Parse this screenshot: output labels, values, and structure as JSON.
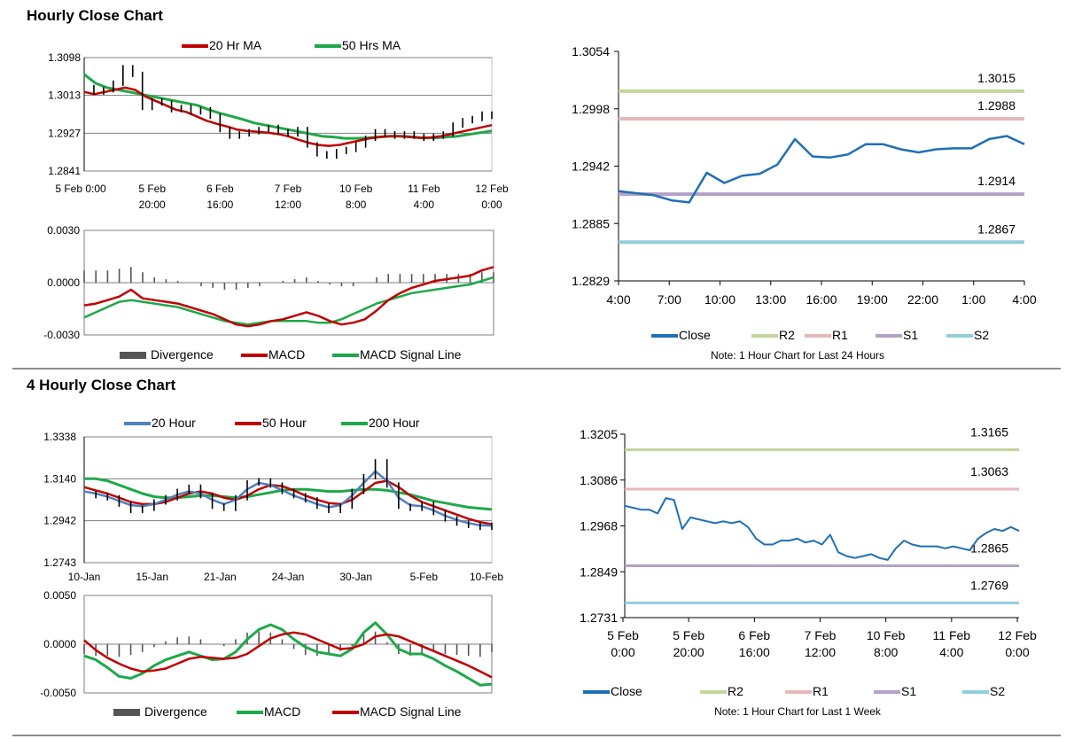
{
  "sections": {
    "hourly_title": "Hourly Close Chart",
    "four_hourly_title": "4 Hourly Close Chart"
  },
  "colors": {
    "red": "#c00000",
    "green": "#1ea84a",
    "blue": "#4f81bd",
    "close": "#1f6fb4",
    "r2": "#c3d69b",
    "r1": "#e6b9b8",
    "s1": "#b3a2c7",
    "s2": "#93cddd",
    "grid": "#7f7f7f",
    "bar": "#555555"
  },
  "chart_data": [
    {
      "id": "hourly_price",
      "type": "line",
      "title": "Hourly Close Chart",
      "legend": [
        "20 Hr MA",
        "50 Hrs MA"
      ],
      "y_ticks": [
        "1.3098",
        "1.3013",
        "1.2927",
        "1.2841"
      ],
      "ylim": [
        1.2841,
        1.3098
      ],
      "x_ticks": [
        [
          "5 Feb 0:00",
          ""
        ],
        [
          "5 Feb",
          "20:00"
        ],
        [
          "6 Feb",
          "16:00"
        ],
        [
          "7 Feb",
          "12:00"
        ],
        [
          "10 Feb",
          "8:00"
        ],
        [
          "11 Feb",
          "4:00"
        ],
        [
          "12 Feb",
          "0:00"
        ]
      ],
      "price": [
        1.303,
        1.302,
        1.3025,
        1.304,
        1.3075,
        1.306,
        1.2985,
        1.3,
        1.2995,
        1.298,
        1.2985,
        1.2975,
        1.298,
        1.2965,
        1.2935,
        1.292,
        1.2925,
        1.293,
        1.2935,
        1.294,
        1.293,
        1.2925,
        1.2935,
        1.29,
        1.288,
        1.2875,
        1.2885,
        1.289,
        1.29,
        1.2915,
        1.293,
        1.2925,
        1.292,
        1.2925,
        1.292,
        1.2915,
        1.292,
        1.2925,
        1.2945,
        1.2955,
        1.296,
        1.297,
        1.2965
      ],
      "ma20": [
        1.302,
        1.3015,
        1.302,
        1.3025,
        1.303,
        1.3025,
        1.301,
        1.3,
        1.299,
        1.298,
        1.2975,
        1.2965,
        1.2955,
        1.2948,
        1.2942,
        1.2935,
        1.2932,
        1.293,
        1.2928,
        1.2925,
        1.292,
        1.2912,
        1.2905,
        1.29,
        1.2898,
        1.29,
        1.2905,
        1.291,
        1.2915,
        1.2918,
        1.292,
        1.292,
        1.2918,
        1.2916,
        1.2917,
        1.292,
        1.2925,
        1.293,
        1.2935,
        1.294,
        1.2945
      ],
      "ma50": [
        1.306,
        1.304,
        1.303,
        1.3025,
        1.302,
        1.3015,
        1.301,
        1.3005,
        1.3,
        1.2995,
        1.299,
        1.298,
        1.2972,
        1.2965,
        1.2958,
        1.295,
        1.2945,
        1.294,
        1.2935,
        1.293,
        1.2925,
        1.292,
        1.2918,
        1.2915,
        1.2915,
        1.2916,
        1.2918,
        1.292,
        1.292,
        1.2918,
        1.2916,
        1.2916,
        1.2918,
        1.292,
        1.2924,
        1.2928,
        1.2932
      ]
    },
    {
      "id": "hourly_macd",
      "type": "bar+line",
      "y_ticks": [
        "0.0030",
        "0.0000",
        "-0.0030"
      ],
      "ylim": [
        -0.003,
        0.003
      ],
      "legend": [
        "Divergence",
        "MACD",
        "MACD Signal Line"
      ],
      "macd": [
        -0.0013,
        -0.0012,
        -0.001,
        -0.0008,
        -0.0004,
        -0.0009,
        -0.001,
        -0.0011,
        -0.0012,
        -0.0014,
        -0.0016,
        -0.0018,
        -0.0021,
        -0.0024,
        -0.0025,
        -0.0024,
        -0.0022,
        -0.0021,
        -0.0019,
        -0.0017,
        -0.0019,
        -0.0022,
        -0.0024,
        -0.0023,
        -0.0021,
        -0.0016,
        -0.001,
        -0.0006,
        -0.0003,
        -0.0001,
        0.0001,
        0.0002,
        0.0003,
        0.0004,
        0.0007,
        0.0009
      ],
      "signal": [
        -0.002,
        -0.0017,
        -0.0014,
        -0.0011,
        -0.001,
        -0.0011,
        -0.0012,
        -0.0013,
        -0.0014,
        -0.0016,
        -0.0018,
        -0.002,
        -0.0022,
        -0.0023,
        -0.0024,
        -0.0023,
        -0.0022,
        -0.0022,
        -0.0022,
        -0.0022,
        -0.0023,
        -0.0023,
        -0.0021,
        -0.0018,
        -0.0015,
        -0.0012,
        -0.001,
        -0.0008,
        -0.0006,
        -0.0005,
        -0.0004,
        -0.0003,
        -0.0002,
        -0.0001,
        0.0001,
        0.0003
      ],
      "divergence": [
        0.0007,
        0.0007,
        0.0007,
        0.0008,
        0.0009,
        0.0006,
        0.0003,
        0.0002,
        0.0001,
        0.0,
        -0.0002,
        -0.0003,
        -0.0004,
        -0.0004,
        -0.0003,
        -0.0002,
        0.0,
        0.0001,
        0.0002,
        0.0003,
        0.0001,
        -0.0001,
        -0.0002,
        -0.0002,
        0.0,
        0.0003,
        0.0005,
        0.0005,
        0.0005,
        0.0005,
        0.0005,
        0.0005,
        0.0005,
        0.0005,
        0.0006,
        0.0006
      ]
    },
    {
      "id": "hourly_24h",
      "type": "line",
      "note": "Note: 1 Hour Chart for Last 24 Hours",
      "y_ticks": [
        "1.3054",
        "1.2998",
        "1.2942",
        "1.2885",
        "1.2829"
      ],
      "ylim": [
        1.2829,
        1.3054
      ],
      "x_ticks": [
        "4:00",
        "7:00",
        "10:00",
        "13:00",
        "16:00",
        "19:00",
        "22:00",
        "1:00",
        "4:00"
      ],
      "close": [
        1.2917,
        1.2915,
        1.2913,
        1.2908,
        1.2906,
        1.2935,
        1.2925,
        1.2932,
        1.2934,
        1.2943,
        1.2968,
        1.2951,
        1.295,
        1.2953,
        1.2963,
        1.2963,
        1.2958,
        1.2955,
        1.2958,
        1.2959,
        1.2959,
        1.2968,
        1.2971,
        1.2963
      ],
      "levels": [
        {
          "name": "R2",
          "value": 1.3015,
          "label": "1.3015"
        },
        {
          "name": "R1",
          "value": 1.2988,
          "label": "1.2988"
        },
        {
          "name": "S1",
          "value": 1.2914,
          "label": "1.2914"
        },
        {
          "name": "S2",
          "value": 1.2867,
          "label": "1.2867"
        }
      ],
      "legend": [
        "Close",
        "R2",
        "R1",
        "S1",
        "S2"
      ]
    },
    {
      "id": "four_hourly_price",
      "type": "line",
      "title": "4 Hourly Close Chart",
      "legend": [
        "20 Hour",
        "50 Hour",
        "200 Hour"
      ],
      "y_ticks": [
        "1.3338",
        "1.3140",
        "1.2942",
        "1.2743"
      ],
      "ylim": [
        1.2743,
        1.3338
      ],
      "x_ticks": [
        "10-Jan",
        "15-Jan",
        "21-Jan",
        "24-Jan",
        "30-Jan",
        "5-Feb",
        "10-Feb"
      ],
      "price": [
        1.307,
        1.306,
        1.305,
        1.302,
        1.299,
        1.3,
        1.303,
        1.305,
        1.308,
        1.31,
        1.306,
        1.301,
        1.3,
        1.305,
        1.312,
        1.313,
        1.311,
        1.308,
        1.306,
        1.304,
        1.301,
        1.299,
        1.301,
        1.308,
        1.315,
        1.322,
        1.311,
        1.301,
        1.3,
        1.302,
        1.298,
        1.295,
        1.293,
        1.292,
        1.291,
        1.292
      ],
      "h20": [
        1.308,
        1.307,
        1.3055,
        1.3035,
        1.3015,
        1.301,
        1.302,
        1.304,
        1.3065,
        1.308,
        1.307,
        1.304,
        1.302,
        1.304,
        1.309,
        1.312,
        1.311,
        1.3085,
        1.306,
        1.304,
        1.302,
        1.3005,
        1.3015,
        1.306,
        1.312,
        1.3175,
        1.313,
        1.305,
        1.3015,
        1.301,
        1.299,
        1.2965,
        1.2945,
        1.293,
        1.292,
        1.2918
      ],
      "h50": [
        1.31,
        1.3085,
        1.307,
        1.305,
        1.303,
        1.302,
        1.302,
        1.303,
        1.305,
        1.307,
        1.308,
        1.307,
        1.305,
        1.304,
        1.306,
        1.309,
        1.311,
        1.3105,
        1.3085,
        1.306,
        1.304,
        1.3025,
        1.302,
        1.304,
        1.308,
        1.312,
        1.313,
        1.31,
        1.306,
        1.303,
        1.301,
        1.299,
        1.297,
        1.295,
        1.2935,
        1.2925
      ],
      "h200": [
        1.314,
        1.314,
        1.313,
        1.311,
        1.309,
        1.307,
        1.3055,
        1.305,
        1.305,
        1.3055,
        1.306,
        1.306,
        1.3055,
        1.305,
        1.3055,
        1.3065,
        1.3075,
        1.3085,
        1.309,
        1.309,
        1.3085,
        1.308,
        1.308,
        1.3085,
        1.309,
        1.309,
        1.3085,
        1.3075,
        1.3065,
        1.305,
        1.3035,
        1.3025,
        1.3015,
        1.3005,
        1.3,
        1.2995
      ]
    },
    {
      "id": "four_hourly_macd",
      "type": "bar+line",
      "y_ticks": [
        "0.0050",
        "0.0000",
        "-0.0050"
      ],
      "ylim": [
        -0.005,
        0.005
      ],
      "legend": [
        "Divergence",
        "MACD",
        "MACD Signal Line"
      ],
      "macd": [
        -0.0012,
        -0.0016,
        -0.0024,
        -0.0033,
        -0.0035,
        -0.003,
        -0.0022,
        -0.0016,
        -0.0012,
        -0.0008,
        -0.0012,
        -0.0016,
        -0.0015,
        -0.0008,
        0.0005,
        0.0015,
        0.002,
        0.0015,
        0.0005,
        -0.0003,
        -0.0008,
        -0.001,
        -0.0012,
        -0.0005,
        0.0012,
        0.0022,
        0.001,
        -0.0005,
        -0.001,
        -0.001,
        -0.0015,
        -0.0022,
        -0.0028,
        -0.0035,
        -0.0042,
        -0.0041
      ],
      "signal": [
        0.0004,
        -0.0006,
        -0.0014,
        -0.002,
        -0.0025,
        -0.0028,
        -0.0027,
        -0.0025,
        -0.002,
        -0.0015,
        -0.0013,
        -0.0014,
        -0.0015,
        -0.0014,
        -0.001,
        -0.0002,
        0.0006,
        0.001,
        0.0012,
        0.001,
        0.0005,
        0.0,
        -0.0005,
        -0.0004,
        0.0,
        0.0008,
        0.001,
        0.0008,
        0.0003,
        -0.0002,
        -0.0007,
        -0.0012,
        -0.0017,
        -0.0022,
        -0.0028,
        -0.0034
      ],
      "divergence": [
        -0.001,
        -0.0012,
        -0.0012,
        -0.0013,
        -0.0011,
        -0.0008,
        -0.0003,
        0.0003,
        0.0007,
        0.0008,
        0.0005,
        0.0,
        -0.0002,
        0.0005,
        0.0012,
        0.0013,
        0.0012,
        0.0005,
        -0.0005,
        -0.0011,
        -0.0012,
        -0.001,
        -0.0007,
        -0.0002,
        0.001,
        0.0013,
        0.0002,
        -0.001,
        -0.0012,
        -0.001,
        -0.0008,
        -0.001,
        -0.0011,
        -0.0012,
        -0.0013,
        -0.0008
      ]
    },
    {
      "id": "hourly_week",
      "type": "line",
      "note": "Note: 1 Hour Chart for Last 1 Week",
      "y_ticks": [
        "1.3205",
        "1.3086",
        "1.2968",
        "1.2849",
        "1.2731"
      ],
      "ylim": [
        1.2731,
        1.3205
      ],
      "x_ticks": [
        [
          "5 Feb",
          "0:00"
        ],
        [
          "5 Feb",
          "20:00"
        ],
        [
          "6 Feb",
          "16:00"
        ],
        [
          "7 Feb",
          "12:00"
        ],
        [
          "10 Feb",
          "8:00"
        ],
        [
          "11 Feb",
          "4:00"
        ],
        [
          "12 Feb",
          "0:00"
        ]
      ],
      "close": [
        1.302,
        1.3015,
        1.301,
        1.301,
        1.3,
        1.304,
        1.3035,
        1.296,
        1.299,
        1.2985,
        1.298,
        1.2975,
        1.298,
        1.2975,
        1.298,
        1.2965,
        1.2935,
        1.292,
        1.292,
        1.293,
        1.293,
        1.2935,
        1.2925,
        1.293,
        1.292,
        1.2945,
        1.29,
        1.289,
        1.2885,
        1.289,
        1.2895,
        1.2885,
        1.288,
        1.291,
        1.293,
        1.292,
        1.2915,
        1.2915,
        1.2915,
        1.291,
        1.2915,
        1.291,
        1.2905,
        1.2935,
        1.295,
        1.296,
        1.2955,
        1.2965,
        1.2955
      ],
      "levels": [
        {
          "name": "R2",
          "value": 1.3165,
          "label": "1.3165"
        },
        {
          "name": "R1",
          "value": 1.3063,
          "label": "1.3063"
        },
        {
          "name": "S1",
          "value": 1.2865,
          "label": "1.2865"
        },
        {
          "name": "S2",
          "value": 1.2769,
          "label": "1.2769"
        }
      ],
      "legend": [
        "Close",
        "R2",
        "R1",
        "S1",
        "S2"
      ]
    }
  ]
}
